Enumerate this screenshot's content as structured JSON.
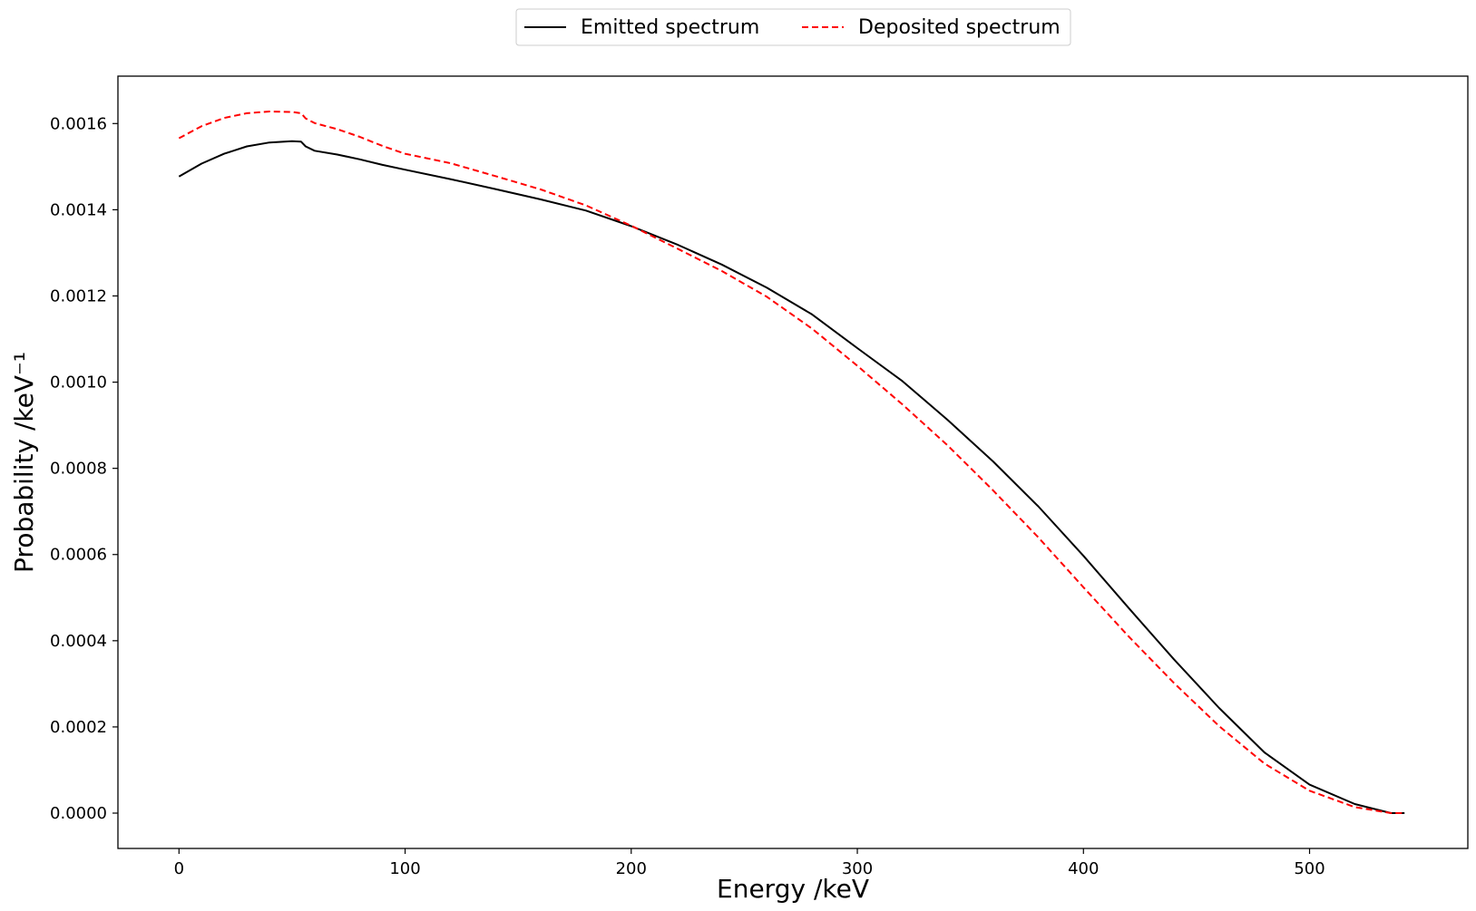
{
  "chart_data": {
    "type": "line",
    "title": "",
    "xlabel": "Energy /keV",
    "ylabel": "Probability /keV⁻¹",
    "xlim": [
      -27,
      570
    ],
    "ylim": [
      -8.2e-05,
      0.00171
    ],
    "xticks": [
      0,
      100,
      200,
      300,
      400,
      500
    ],
    "xtick_labels": [
      "0",
      "100",
      "200",
      "300",
      "400",
      "500"
    ],
    "yticks": [
      0.0,
      0.0002,
      0.0004,
      0.0006,
      0.0008,
      0.001,
      0.0012,
      0.0014,
      0.0016
    ],
    "ytick_labels": [
      "0.0000",
      "0.0002",
      "0.0004",
      "0.0006",
      "0.0008",
      "0.0010",
      "0.0012",
      "0.0014",
      "0.0016"
    ],
    "grid": false,
    "legend_position": "top-center",
    "series": [
      {
        "name": "Emitted spectrum",
        "color": "#000000",
        "dash": "solid",
        "x": [
          0,
          10,
          20,
          30,
          40,
          50,
          54,
          56,
          60,
          70,
          80,
          90,
          100,
          120,
          140,
          160,
          180,
          200,
          220,
          240,
          260,
          280,
          300,
          320,
          340,
          360,
          380,
          400,
          420,
          440,
          460,
          480,
          500,
          520,
          536,
          542
        ],
        "y": [
          0.001477,
          0.001507,
          0.00153,
          0.001547,
          0.001556,
          0.001559,
          0.001558,
          0.001547,
          0.001537,
          0.001528,
          0.001517,
          0.001504,
          0.001493,
          0.001471,
          0.001448,
          0.001424,
          0.001398,
          0.001362,
          0.00132,
          0.001273,
          0.001219,
          0.001157,
          0.001079,
          0.001002,
          0.000912,
          0.000816,
          0.000712,
          0.000597,
          0.000476,
          0.000357,
          0.000244,
          0.000141,
          6.6e-05,
          2.1e-05,
          0.0,
          0.0
        ]
      },
      {
        "name": "Deposited spectrum",
        "color": "#ff0000",
        "dash": "dashed",
        "x": [
          0,
          10,
          20,
          30,
          40,
          50,
          54,
          56,
          60,
          70,
          80,
          90,
          100,
          120,
          140,
          160,
          180,
          200,
          220,
          240,
          260,
          280,
          300,
          320,
          340,
          360,
          380,
          400,
          420,
          440,
          460,
          480,
          500,
          520,
          536,
          542
        ],
        "y": [
          0.001566,
          0.001594,
          0.001613,
          0.001624,
          0.001628,
          0.001627,
          0.001624,
          0.001612,
          0.001601,
          0.001587,
          0.001569,
          0.001548,
          0.00153,
          0.001508,
          0.001478,
          0.001447,
          0.00141,
          0.001363,
          0.001311,
          0.001258,
          0.001198,
          0.001124,
          0.001038,
          0.000948,
          0.000853,
          0.000749,
          0.00064,
          0.000524,
          0.00041,
          0.000302,
          0.000202,
          0.000115,
          5.2e-05,
          1.4e-05,
          0.0,
          0.0
        ]
      }
    ]
  }
}
